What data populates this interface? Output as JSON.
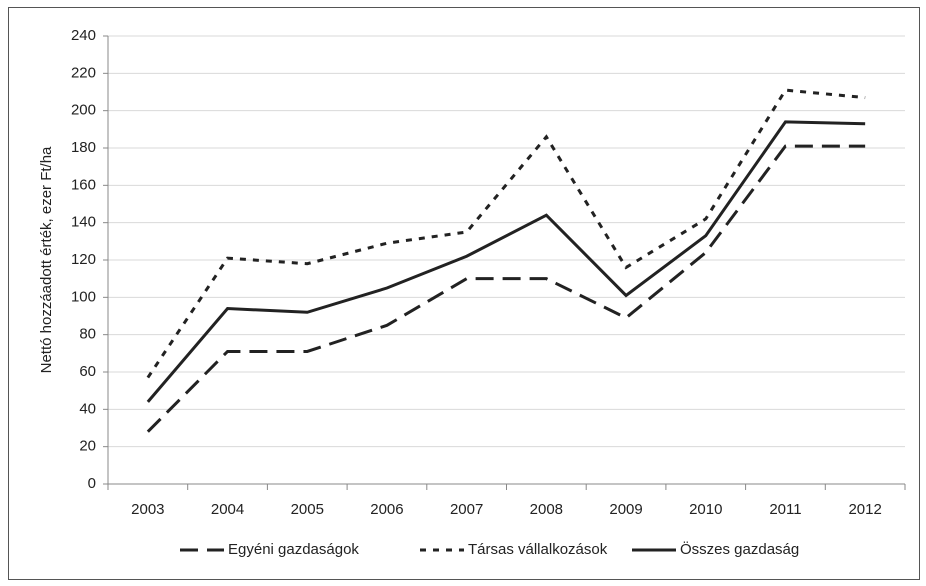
{
  "chart_data": {
    "type": "line",
    "y_label": "Nettó hozzáadott érték, ezer Ft/ha",
    "categories": [
      "2003",
      "2004",
      "2005",
      "2006",
      "2007",
      "2008",
      "2009",
      "2010",
      "2011",
      "2012"
    ],
    "series": [
      {
        "name": "Egyéni gazdaságok",
        "color": "#222222",
        "dash": "long",
        "values": [
          28,
          71,
          71,
          85,
          110,
          110,
          89,
          124,
          181,
          181
        ]
      },
      {
        "name": "Társas vállalkozások",
        "color": "#222222",
        "dash": "short",
        "values": [
          57,
          121,
          118,
          129,
          135,
          186,
          116,
          142,
          211,
          207
        ]
      },
      {
        "name": "Összes gazdaság",
        "color": "#222222",
        "dash": "solid",
        "values": [
          44,
          94,
          92,
          105,
          122,
          144,
          101,
          133,
          194,
          193
        ]
      }
    ],
    "ylim": [
      0,
      240
    ],
    "yticks": [
      0,
      20,
      40,
      60,
      80,
      100,
      120,
      140,
      160,
      180,
      200,
      220,
      240
    ],
    "grid": true
  }
}
